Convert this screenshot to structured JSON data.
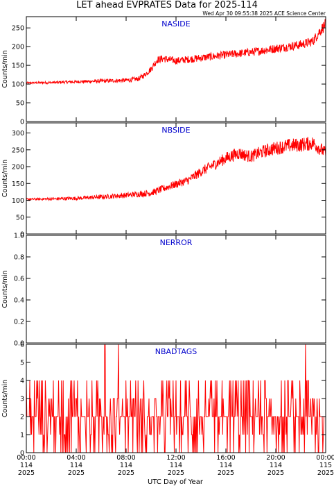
{
  "title": "LET ahead EVPRATES Data for 2025-114",
  "timestamp": "Wed Apr 30 09:55:38 2025 ACE Science Center",
  "x_axis": {
    "label": "UTC Day of Year",
    "ticks": [
      {
        "time": "00:00",
        "doy": "114",
        "year": "2025"
      },
      {
        "time": "04:00",
        "doy": "114",
        "year": "2025"
      },
      {
        "time": "08:00",
        "doy": "114",
        "year": "2025"
      },
      {
        "time": "12:00",
        "doy": "114",
        "year": "2025"
      },
      {
        "time": "16:00",
        "doy": "114",
        "year": "2025"
      },
      {
        "time": "20:00",
        "doy": "114",
        "year": "2025"
      },
      {
        "time": "00:00",
        "doy": "115",
        "year": "2025"
      }
    ],
    "range_hours": [
      0,
      24
    ]
  },
  "colors": {
    "series": "#ff0000",
    "label": "#0000cc",
    "axis": "#000000"
  },
  "chart_data": [
    {
      "type": "line",
      "series_name": "NASIDE",
      "ylabel": "Counts/min",
      "ylim": [
        0,
        280
      ],
      "yticks": [
        0,
        50,
        100,
        150,
        200,
        250
      ],
      "x_hours": [
        0,
        2,
        4,
        6,
        8,
        9,
        9.5,
        10,
        10.5,
        11,
        12,
        14,
        16,
        18,
        20,
        22,
        23,
        23.5,
        24
      ],
      "values": [
        103,
        104,
        106,
        108,
        110,
        114,
        125,
        140,
        165,
        168,
        162,
        170,
        178,
        185,
        195,
        205,
        215,
        240,
        260
      ]
    },
    {
      "type": "line",
      "series_name": "NBSIDE",
      "ylabel": "Counts/min",
      "ylim": [
        0,
        330
      ],
      "yticks": [
        0,
        50,
        100,
        150,
        200,
        250,
        300
      ],
      "x_hours": [
        0,
        2,
        4,
        6,
        8,
        10,
        11,
        12,
        13,
        14,
        15,
        16,
        17,
        18,
        19,
        20,
        21,
        22,
        23,
        24
      ],
      "values": [
        103,
        104,
        106,
        110,
        115,
        122,
        135,
        148,
        160,
        185,
        205,
        225,
        240,
        230,
        245,
        255,
        262,
        265,
        270,
        240
      ]
    },
    {
      "type": "line",
      "series_name": "NERROR",
      "ylabel": "Counts/min",
      "ylim": [
        0,
        1
      ],
      "yticks": [
        0.0,
        0.2,
        0.4,
        0.6,
        0.8,
        1.0
      ],
      "x_hours": [
        0,
        24
      ],
      "values": [
        0,
        0
      ]
    },
    {
      "type": "line",
      "series_name": "NBADTAGS",
      "ylabel": "Counts/min",
      "ylim": [
        0,
        6
      ],
      "yticks": [
        0,
        1,
        2,
        3,
        4,
        5,
        6
      ],
      "typical_range": [
        0,
        4
      ],
      "peak_values": [
        {
          "hour": 6.3,
          "value": 6
        },
        {
          "hour": 7.4,
          "value": 6
        },
        {
          "hour": 22.4,
          "value": 6
        }
      ]
    }
  ]
}
